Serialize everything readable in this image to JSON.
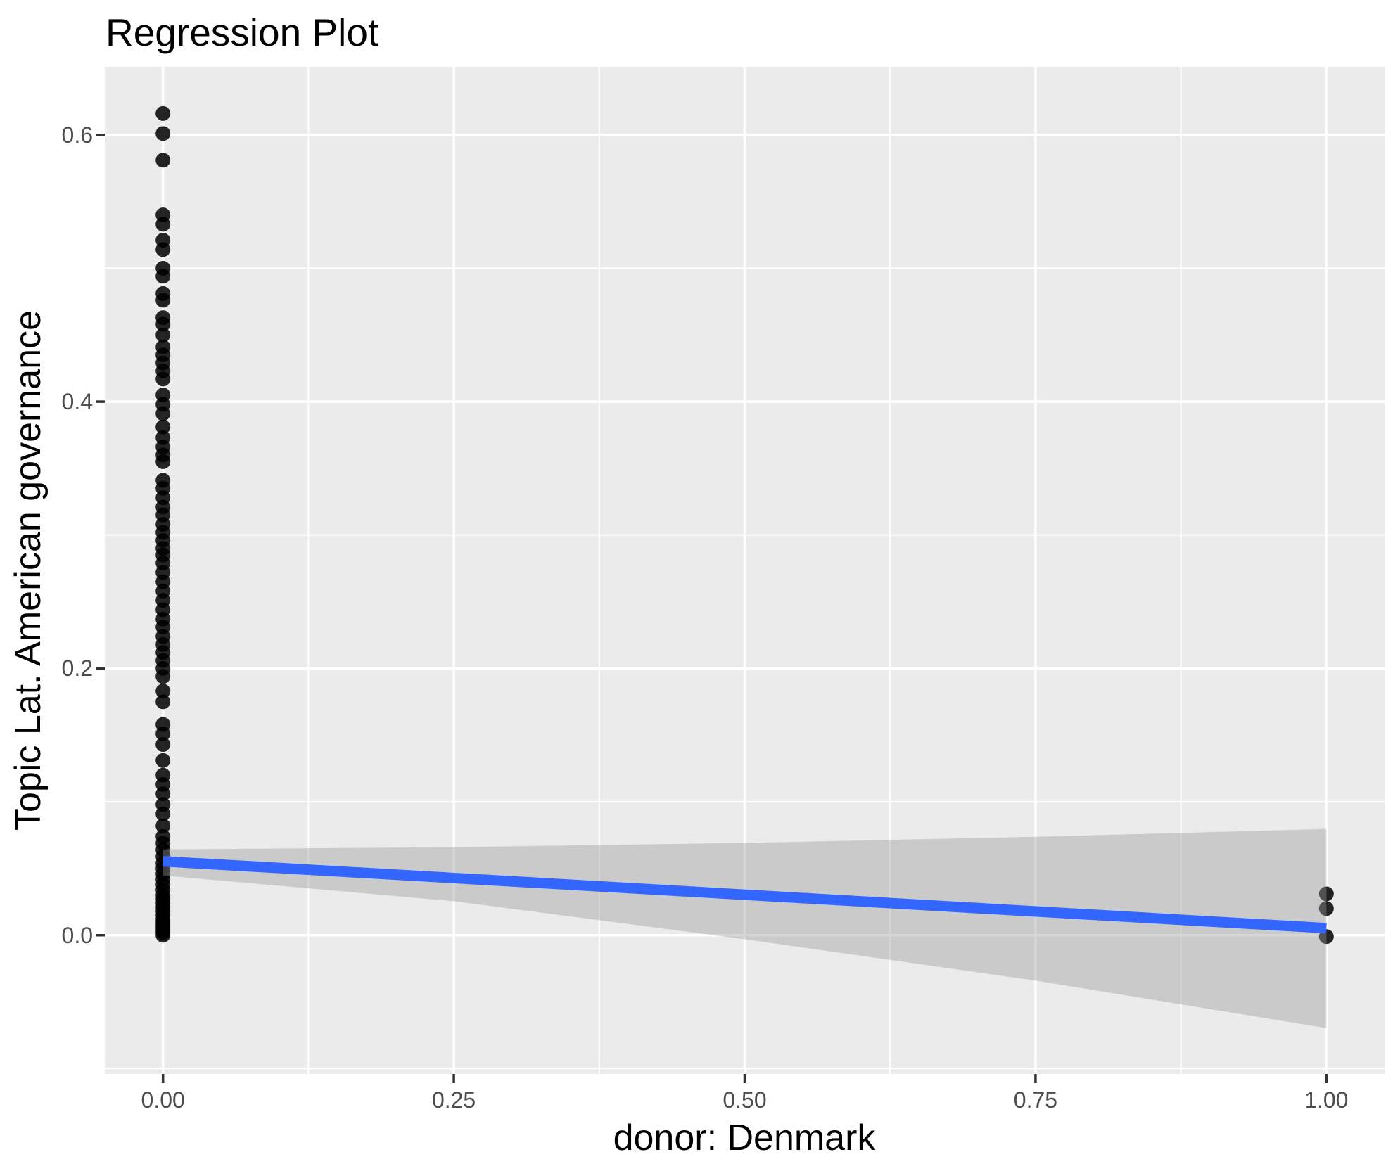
{
  "page": {
    "title": "Regression Plot"
  },
  "chart_data": {
    "type": "scatter",
    "title": "Regression Plot",
    "xlabel": "donor: Denmark",
    "ylabel": "Topic Lat. American governance",
    "xlim": [
      -0.05,
      1.05
    ],
    "ylim": [
      -0.104,
      0.651
    ],
    "grid": true,
    "legend": false,
    "panel_bg": "#EBEBEB",
    "grid_color": "#FFFFFF",
    "axis_text_color": "#4D4D4D",
    "tick_mark_color": "#333333",
    "x_ticks": [
      {
        "value": 0.0,
        "label": "0.00"
      },
      {
        "value": 0.25,
        "label": "0.25"
      },
      {
        "value": 0.5,
        "label": "0.50"
      },
      {
        "value": 0.75,
        "label": "0.75"
      },
      {
        "value": 1.0,
        "label": "1.00"
      }
    ],
    "y_ticks": [
      {
        "value": 0.0,
        "label": "0.0"
      },
      {
        "value": 0.2,
        "label": "0.2"
      },
      {
        "value": 0.4,
        "label": "0.4"
      },
      {
        "value": 0.6,
        "label": "0.6"
      }
    ],
    "x_minor_breaks": [
      0.125,
      0.375,
      0.625,
      0.875
    ],
    "y_minor_breaks": [
      -0.1,
      0.1,
      0.3,
      0.5
    ],
    "series": [
      {
        "name": "observations",
        "type": "points",
        "color": "#000000",
        "opacity": 0.85,
        "point_radius": 10.5,
        "groups": [
          {
            "x": 0,
            "y": [
              0.616,
              0.601,
              0.581,
              0.54,
              0.533,
              0.521,
              0.514,
              0.5,
              0.494,
              0.481,
              0.476,
              0.463,
              0.458,
              0.45,
              0.441,
              0.435,
              0.429,
              0.423,
              0.417,
              0.405,
              0.398,
              0.391,
              0.381,
              0.373,
              0.366,
              0.36,
              0.355,
              0.341,
              0.335,
              0.328,
              0.321,
              0.315,
              0.308,
              0.302,
              0.296,
              0.29,
              0.285,
              0.279,
              0.272,
              0.265,
              0.258,
              0.251,
              0.244,
              0.237,
              0.231,
              0.224,
              0.218,
              0.212,
              0.206,
              0.2,
              0.194,
              0.183,
              0.175,
              0.158,
              0.151,
              0.143,
              0.131,
              0.12,
              0.113,
              0.106,
              0.098,
              0.091,
              0.082,
              0.074,
              0.069,
              0.064,
              0.059,
              0.054,
              0.05,
              0.046,
              0.042,
              0.038,
              0.034,
              0.03,
              0.027,
              0.024,
              0.021,
              0.018,
              0.015,
              0.012,
              0.01,
              0.008,
              0.006,
              0.004,
              0.002,
              0.0
            ]
          },
          {
            "x": 1,
            "y": [
              0.031,
              0.02,
              -0.001
            ]
          }
        ]
      },
      {
        "name": "confidence-band",
        "type": "band",
        "color": "rgba(153,153,153,0.4)",
        "x": [
          0.0,
          0.25,
          0.5,
          0.75,
          1.0
        ],
        "upper": [
          0.0643,
          0.066,
          0.0692,
          0.0738,
          0.0796
        ],
        "lower": [
          0.0448,
          0.0255,
          -0.003,
          -0.034,
          -0.0696
        ]
      },
      {
        "name": "regression-line",
        "type": "line",
        "color": "#3366FF",
        "width": 15,
        "x": [
          0,
          1
        ],
        "y": [
          0.0554,
          0.0053
        ]
      }
    ]
  }
}
